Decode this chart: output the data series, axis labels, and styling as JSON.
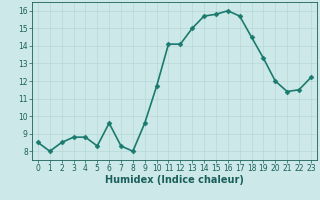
{
  "x": [
    0,
    1,
    2,
    3,
    4,
    5,
    6,
    7,
    8,
    9,
    10,
    11,
    12,
    13,
    14,
    15,
    16,
    17,
    18,
    19,
    20,
    21,
    22,
    23
  ],
  "y": [
    8.5,
    8.0,
    8.5,
    8.8,
    8.8,
    8.3,
    9.6,
    8.3,
    8.0,
    9.6,
    11.7,
    14.1,
    14.1,
    15.0,
    15.7,
    15.8,
    16.0,
    15.7,
    14.5,
    13.3,
    12.0,
    11.4,
    11.5,
    12.2
  ],
  "line_color": "#1a7a6e",
  "marker_color": "#1a7a6e",
  "bg_color": "#cce8e8",
  "grid_color": "#b8d8d8",
  "xlabel": "Humidex (Indice chaleur)",
  "xlim": [
    -0.5,
    23.5
  ],
  "ylim": [
    7.5,
    16.5
  ],
  "yticks": [
    8,
    9,
    10,
    11,
    12,
    13,
    14,
    15,
    16
  ],
  "xticks": [
    0,
    1,
    2,
    3,
    4,
    5,
    6,
    7,
    8,
    9,
    10,
    11,
    12,
    13,
    14,
    15,
    16,
    17,
    18,
    19,
    20,
    21,
    22,
    23
  ],
  "font_color": "#1a5f5a",
  "xlabel_fontsize": 7,
  "tick_fontsize": 5.5,
  "line_width": 1.2,
  "marker_size": 2.5
}
